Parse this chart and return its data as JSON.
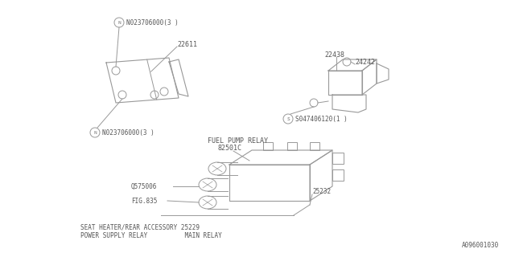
{
  "bg_color": "#ffffff",
  "line_color": "#999999",
  "text_color": "#555555",
  "font_size": 6.0,
  "footer": "A096001030",
  "part1_label_top": "N023706000(3 )",
  "part1_label_bottom": "N023706000(3 )",
  "part1_number": "22611",
  "part2_label_s": "S047406120(1 )",
  "part2_number1": "22438",
  "part2_number2": "24242",
  "part3_label1": "FUEL PUMP RELAY",
  "part3_number1": "82501C",
  "part3_label2": "SEAT HEATER/REAR ACCESSORY 25229",
  "part3_label3": "POWER SUPPLY RELAY          MAIN RELAY",
  "part3_num_0575006": "Q575006",
  "part3_num_FIG835": "FIG.835",
  "part3_num_25232": "25232"
}
